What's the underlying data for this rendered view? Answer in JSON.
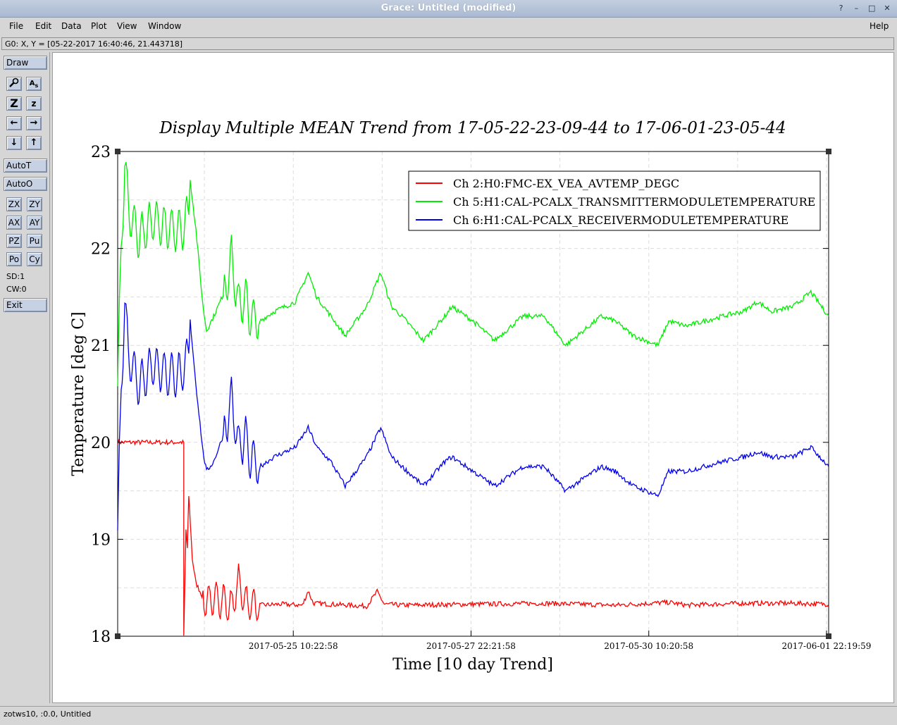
{
  "window": {
    "title": "Grace: Untitled (modified)",
    "controls": [
      "?",
      "–",
      "□",
      "✕"
    ]
  },
  "menu": {
    "file": "File",
    "edit": "Edit",
    "data": "Data",
    "plot": "Plot",
    "view": "View",
    "window": "Window",
    "help": "Help"
  },
  "locator": "G0: X, Y = [05-22-2017 16:40:46, 21.443718]",
  "tools": {
    "draw": "Draw",
    "autot": "AutoT",
    "autoo": "AutoO",
    "zx": "ZX",
    "zy": "ZY",
    "ax": "AX",
    "ay": "AY",
    "pz": "PZ",
    "pu": "Pu",
    "po": "Po",
    "cy": "Cy",
    "sd": "SD:1",
    "cw": "CW:0",
    "exit": "Exit",
    "icons": {
      "zoom": "magnifier-icon",
      "text": "text-icon",
      "expand": "zoom-expand-icon",
      "shrink": "zoom-shrink-icon",
      "left": "arrow-left-icon",
      "right": "arrow-right-icon",
      "down": "arrow-down-icon",
      "up": "arrow-up-icon"
    }
  },
  "footer": "zotws10, :0.0, Untitled",
  "chart_data": {
    "type": "line",
    "title": "Display Multiple MEAN Trend from 17-05-22-23-09-44 to 17-06-01-23-05-44",
    "xlabel": "Time [10 day Trend]",
    "ylabel": "Temperature [deg C]",
    "ylim": [
      18,
      23
    ],
    "yticks": [
      "18",
      "19",
      "20",
      "21",
      "22",
      "23"
    ],
    "xlim": [
      0,
      10
    ],
    "xticks": [
      {
        "x": 2.47,
        "label": "2017-05-25 10:22:58"
      },
      {
        "x": 4.97,
        "label": "2017-05-27 22:21:58"
      },
      {
        "x": 7.47,
        "label": "2017-05-30 10:20:58"
      },
      {
        "x": 9.97,
        "label": "2017-06-01 22:19:59"
      }
    ],
    "grid": true,
    "legend_position": "top-right",
    "series": [
      {
        "name": "Ch 2:H0:FMC-EX_VEA_AVTEMP_DEGC",
        "color": "#ff0000",
        "x": [
          0,
          0.93,
          0.93,
          0.96,
          0.98,
          1.0,
          1.02,
          1.05,
          1.1,
          1.2,
          1.3,
          1.4,
          1.5,
          1.6,
          1.7,
          1.8,
          1.9,
          2.0,
          2.3,
          2.6,
          2.68,
          2.75,
          3.0,
          3.5,
          3.65,
          3.75,
          4.0,
          5.0,
          6.0,
          7.0,
          7.75,
          8.0,
          8.8,
          9.5,
          10.0
        ],
        "y": [
          20,
          20,
          18.0,
          19.1,
          18.9,
          19.45,
          19.2,
          18.8,
          18.55,
          18.4,
          18.35,
          18.4,
          18.35,
          18.3,
          18.55,
          18.35,
          18.33,
          18.32,
          18.33,
          18.32,
          18.47,
          18.34,
          18.33,
          18.31,
          18.46,
          18.33,
          18.32,
          18.33,
          18.34,
          18.32,
          18.35,
          18.32,
          18.34,
          18.34,
          18.33
        ]
      },
      {
        "name": "Ch 5:H1:CAL-PCALX_TRANSMITTERMODULETEMPERATURE",
        "color": "#00ee00",
        "x": [
          0,
          0.05,
          0.1,
          0.15,
          0.3,
          0.5,
          0.7,
          0.9,
          1.0,
          1.02,
          1.1,
          1.2,
          1.25,
          1.35,
          1.5,
          1.6,
          1.7,
          1.8,
          1.85,
          2.0,
          2.2,
          2.5,
          2.68,
          2.8,
          3.0,
          3.2,
          3.5,
          3.7,
          3.85,
          4.0,
          4.3,
          4.6,
          4.7,
          5.0,
          5.3,
          5.7,
          6.0,
          6.3,
          6.8,
          7.0,
          7.25,
          7.6,
          7.75,
          8.0,
          8.5,
          8.8,
          9.0,
          9.2,
          9.5,
          9.75,
          10.0
        ],
        "y": [
          20.6,
          22.0,
          22.9,
          22.4,
          22.1,
          22.3,
          22.2,
          22.2,
          22.35,
          22.7,
          22.2,
          21.4,
          21.15,
          21.3,
          21.55,
          21.9,
          21.4,
          21.5,
          21.3,
          21.25,
          21.35,
          21.45,
          21.75,
          21.5,
          21.3,
          21.1,
          21.4,
          21.75,
          21.4,
          21.3,
          21.05,
          21.3,
          21.4,
          21.25,
          21.05,
          21.3,
          21.3,
          21.0,
          21.3,
          21.25,
          21.1,
          21.0,
          21.25,
          21.2,
          21.3,
          21.35,
          21.45,
          21.35,
          21.4,
          21.55,
          21.3
        ]
      },
      {
        "name": "Ch 6:H1:CAL-PCALX_RECEIVERMODULETEMPERATURE",
        "color": "#0000ee",
        "x": [
          0,
          0.05,
          0.1,
          0.15,
          0.3,
          0.5,
          0.7,
          0.9,
          1.0,
          1.02,
          1.1,
          1.2,
          1.25,
          1.35,
          1.5,
          1.6,
          1.7,
          1.8,
          1.85,
          2.0,
          2.2,
          2.5,
          2.68,
          2.8,
          3.0,
          3.2,
          3.5,
          3.7,
          3.85,
          4.0,
          4.3,
          4.6,
          4.7,
          5.0,
          5.3,
          5.7,
          6.0,
          6.3,
          6.8,
          7.0,
          7.25,
          7.6,
          7.75,
          8.0,
          8.5,
          8.8,
          9.0,
          9.2,
          9.5,
          9.75,
          10.0
        ],
        "y": [
          19.1,
          20.5,
          21.5,
          20.9,
          20.6,
          20.8,
          20.7,
          20.7,
          20.9,
          21.25,
          20.6,
          19.9,
          19.7,
          19.8,
          20.1,
          20.45,
          19.95,
          20.05,
          19.85,
          19.75,
          19.85,
          19.95,
          20.15,
          19.95,
          19.8,
          19.55,
          19.85,
          20.15,
          19.85,
          19.75,
          19.55,
          19.8,
          19.85,
          19.7,
          19.55,
          19.75,
          19.75,
          19.5,
          19.75,
          19.7,
          19.55,
          19.45,
          19.7,
          19.7,
          19.8,
          19.85,
          19.9,
          19.85,
          19.85,
          19.95,
          19.75
        ]
      }
    ]
  }
}
